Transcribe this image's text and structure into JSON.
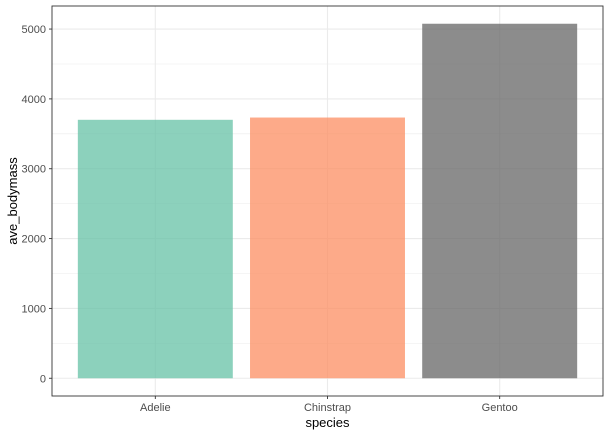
{
  "chart_data": {
    "type": "bar",
    "title": "",
    "xlabel": "species",
    "ylabel": "ave_bodymass",
    "categories": [
      "Adelie",
      "Chinstrap",
      "Gentoo"
    ],
    "values": [
      3700.66,
      3733.09,
      5076.02
    ],
    "colors": [
      "#66C2A5",
      "#FC8D62",
      "#666666"
    ],
    "bar_opacity": 0.75,
    "yticks": [
      0,
      1000,
      2000,
      3000,
      4000,
      5000
    ],
    "ylim": [
      -254,
      5330
    ],
    "grid": true,
    "theme": "bw",
    "legend": "none"
  }
}
